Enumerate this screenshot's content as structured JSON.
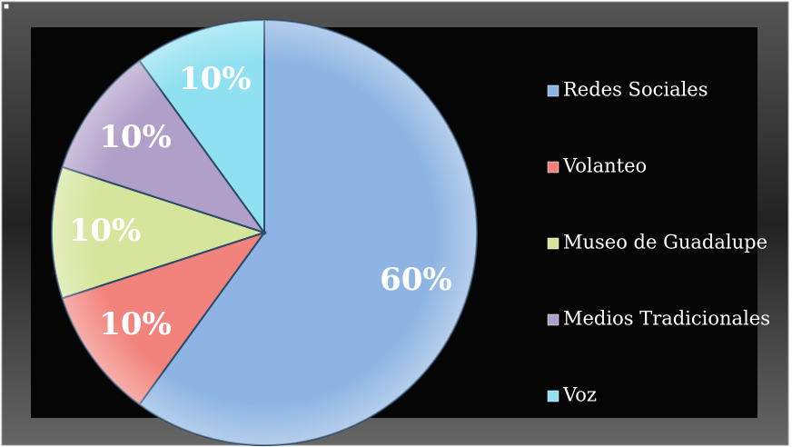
{
  "chart_data": {
    "type": "pie",
    "categories": [
      "Redes Sociales",
      "Volanteo",
      "Museo de Guadalupe",
      "Medios Tradicionales",
      "Voz"
    ],
    "values": [
      60,
      10,
      10,
      10,
      10
    ],
    "value_labels": [
      "60%",
      "10%",
      "10%",
      "10%",
      "10%"
    ],
    "colors": [
      "#8db4e2",
      "#f2837c",
      "#d5e59c",
      "#b09fc9",
      "#8fe0f0"
    ],
    "legend": "right"
  }
}
